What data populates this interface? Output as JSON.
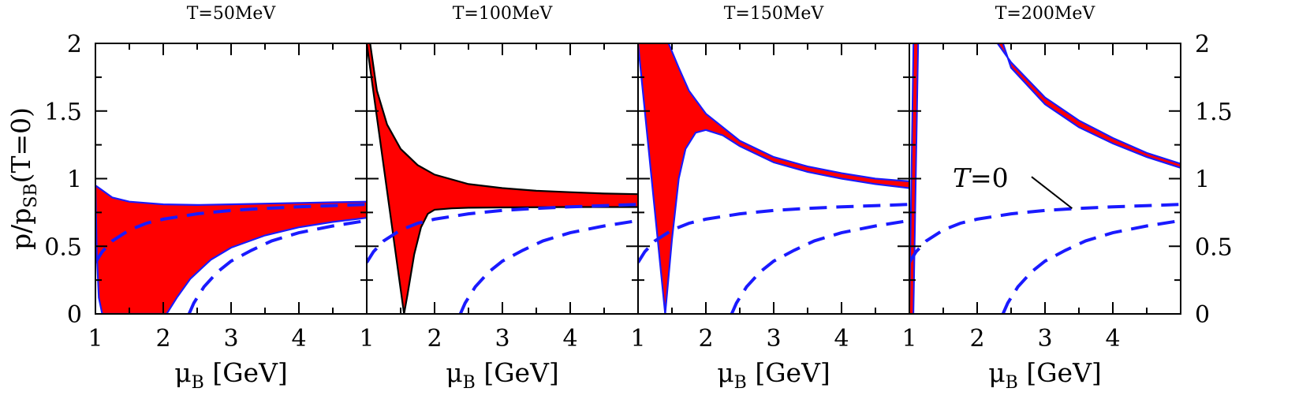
{
  "chart_data": {
    "type": "area",
    "colors": {
      "band_fill": "#ff0000",
      "band_edge_blue": "#1a1aff",
      "band_edge_black": "#000000",
      "dashed": "#1a1aff"
    },
    "ylabel": {
      "main": "p/p",
      "sub": "SB",
      "tail": "(T=0)"
    },
    "xlabel": {
      "main": "μ",
      "sub": "B",
      "tail": " [GeV]"
    },
    "xlim": [
      1,
      5
    ],
    "ylim": [
      0,
      2
    ],
    "xticks": [
      "1",
      "2",
      "3",
      "4"
    ],
    "yticks": [
      "0",
      "0.5",
      "1",
      "1.5",
      "2"
    ],
    "annotation": {
      "text": "T=0",
      "italic_part": "T",
      "rest": "=0",
      "points_to": [
        3.4,
        0.78
      ],
      "anchor": [
        2.5,
        0.99
      ]
    },
    "dashed_curves": [
      {
        "name": "T=0 upper",
        "x": [
          1.0,
          1.1,
          1.25,
          1.5,
          1.75,
          2.0,
          2.5,
          3.0,
          3.5,
          4.0,
          4.5,
          5.0
        ],
        "y": [
          0.38,
          0.46,
          0.54,
          0.62,
          0.67,
          0.7,
          0.74,
          0.765,
          0.78,
          0.792,
          0.8,
          0.81
        ]
      },
      {
        "name": "T=0 lower",
        "x": [
          2.38,
          2.45,
          2.6,
          2.8,
          3.0,
          3.3,
          3.6,
          4.0,
          4.5,
          5.0
        ],
        "y": [
          0.0,
          0.08,
          0.2,
          0.31,
          0.39,
          0.47,
          0.54,
          0.6,
          0.65,
          0.69
        ]
      }
    ],
    "panels": [
      {
        "title": "T=50MeV",
        "edge_color": "blue",
        "upper": {
          "x": [
            1.0,
            1.25,
            1.5,
            2.0,
            2.5,
            3.0,
            3.5,
            4.0,
            4.5,
            5.0
          ],
          "y": [
            0.95,
            0.86,
            0.83,
            0.81,
            0.805,
            0.81,
            0.815,
            0.82,
            0.825,
            0.83
          ]
        },
        "lower": {
          "x": [
            1.0,
            1.02,
            1.05,
            1.1,
            2.05,
            2.2,
            2.4,
            2.7,
            3.0,
            3.5,
            4.0,
            4.5,
            5.0
          ],
          "y": [
            0.95,
            0.45,
            0.12,
            0.0,
            0.0,
            0.12,
            0.26,
            0.4,
            0.49,
            0.58,
            0.64,
            0.68,
            0.71
          ]
        }
      },
      {
        "title": "T=100MeV",
        "edge_color": "black",
        "upper": {
          "x": [
            1.05,
            1.15,
            1.3,
            1.5,
            1.75,
            2.0,
            2.5,
            3.0,
            3.5,
            4.0,
            4.5,
            5.0
          ],
          "y": [
            2.0,
            1.65,
            1.4,
            1.22,
            1.1,
            1.03,
            0.96,
            0.93,
            0.91,
            0.9,
            0.89,
            0.885
          ]
        },
        "lower": {
          "x": [
            1.0,
            1.55,
            1.6,
            1.7,
            1.8,
            1.9,
            2.0,
            2.25,
            2.5,
            3.0,
            4.0,
            5.0
          ],
          "y": [
            2.0,
            0.0,
            0.14,
            0.44,
            0.64,
            0.74,
            0.77,
            0.78,
            0.785,
            0.787,
            0.79,
            0.79
          ]
        }
      },
      {
        "title": "T=150MeV",
        "edge_color": "blue",
        "upper": {
          "x": [
            1.45,
            1.6,
            1.75,
            2.0,
            2.5,
            3.0,
            3.5,
            4.0,
            4.5,
            5.0
          ],
          "y": [
            2.0,
            1.82,
            1.65,
            1.48,
            1.28,
            1.16,
            1.09,
            1.04,
            1.0,
            0.98
          ]
        },
        "lower": {
          "x": [
            1.0,
            1.4,
            1.5,
            1.6,
            1.7,
            1.85,
            2.0,
            2.25,
            2.5,
            3.0,
            3.5,
            4.0,
            4.5,
            5.0
          ],
          "y": [
            2.0,
            0.0,
            0.55,
            1.0,
            1.22,
            1.34,
            1.36,
            1.32,
            1.24,
            1.12,
            1.05,
            1.0,
            0.96,
            0.93
          ]
        }
      },
      {
        "title": "T=200MeV",
        "edge_color": "blue",
        "upper": {
          "x": [
            2.3,
            2.5,
            3.0,
            3.5,
            4.0,
            4.5,
            5.0
          ],
          "y": [
            2.0,
            1.86,
            1.6,
            1.43,
            1.3,
            1.19,
            1.11
          ]
        },
        "lower": {
          "x": [
            2.38,
            2.5,
            3.0,
            3.5,
            4.0,
            4.5,
            5.0
          ],
          "y": [
            2.0,
            1.82,
            1.55,
            1.38,
            1.26,
            1.16,
            1.08
          ]
        },
        "left_band": {
          "x_top": [
            1.06,
            1.13
          ],
          "x_bottom": [
            1.0,
            1.06
          ]
        }
      }
    ]
  }
}
